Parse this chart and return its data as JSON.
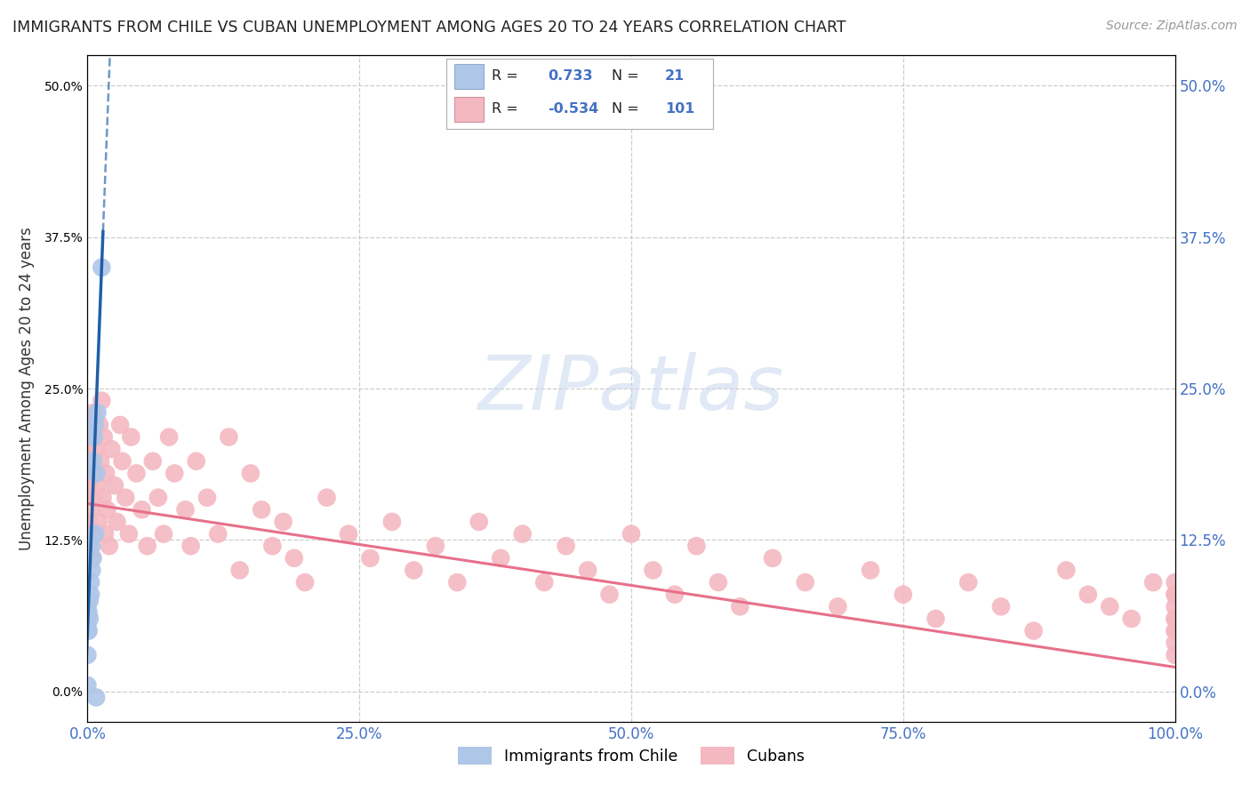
{
  "title": "IMMIGRANTS FROM CHILE VS CUBAN UNEMPLOYMENT AMONG AGES 20 TO 24 YEARS CORRELATION CHART",
  "source": "Source: ZipAtlas.com",
  "ylabel": "Unemployment Among Ages 20 to 24 years",
  "xlim": [
    0.0,
    1.0
  ],
  "ylim": [
    -0.025,
    0.525
  ],
  "xticks": [
    0.0,
    0.25,
    0.5,
    0.75,
    1.0
  ],
  "yticks": [
    0.0,
    0.125,
    0.25,
    0.375,
    0.5
  ],
  "chile_color": "#aec6e8",
  "cuban_color": "#f4b8c1",
  "chile_line_color": "#1f5fa6",
  "cuban_line_color": "#e8708a",
  "background_color": "#ffffff",
  "chile_points_x": [
    0.0,
    0.0,
    0.0,
    0.0,
    0.0,
    0.001,
    0.001,
    0.002,
    0.002,
    0.003,
    0.003,
    0.004,
    0.004,
    0.005,
    0.005,
    0.006,
    0.007,
    0.007,
    0.008,
    0.009,
    0.013
  ],
  "chile_points_y": [
    0.005,
    0.03,
    0.05,
    0.055,
    0.07,
    0.05,
    0.065,
    0.06,
    0.075,
    0.08,
    0.09,
    0.1,
    0.12,
    0.11,
    0.19,
    0.21,
    0.13,
    0.22,
    0.18,
    0.23,
    0.35
  ],
  "chile_outlier_x": [
    0.008
  ],
  "chile_outlier_y": [
    0.03
  ],
  "cuban_points_x": [
    0.0,
    0.0,
    0.0,
    0.0,
    0.0,
    0.001,
    0.001,
    0.002,
    0.002,
    0.003,
    0.003,
    0.004,
    0.005,
    0.005,
    0.006,
    0.007,
    0.008,
    0.009,
    0.01,
    0.011,
    0.012,
    0.013,
    0.014,
    0.015,
    0.016,
    0.017,
    0.018,
    0.02,
    0.022,
    0.025,
    0.027,
    0.03,
    0.032,
    0.035,
    0.038,
    0.04,
    0.045,
    0.05,
    0.055,
    0.06,
    0.065,
    0.07,
    0.075,
    0.08,
    0.09,
    0.095,
    0.1,
    0.11,
    0.12,
    0.13,
    0.14,
    0.15,
    0.16,
    0.17,
    0.18,
    0.19,
    0.2,
    0.22,
    0.24,
    0.26,
    0.28,
    0.3,
    0.32,
    0.34,
    0.36,
    0.38,
    0.4,
    0.42,
    0.44,
    0.46,
    0.48,
    0.5,
    0.52,
    0.54,
    0.56,
    0.58,
    0.6,
    0.63,
    0.66,
    0.69,
    0.72,
    0.75,
    0.78,
    0.81,
    0.84,
    0.87,
    0.9,
    0.92,
    0.94,
    0.96,
    0.98,
    1.0,
    1.0,
    1.0,
    1.0,
    1.0,
    1.0,
    1.0,
    1.0,
    1.0,
    1.0
  ],
  "cuban_points_y": [
    0.13,
    0.16,
    0.18,
    0.2,
    0.22,
    0.14,
    0.17,
    0.12,
    0.19,
    0.15,
    0.21,
    0.11,
    0.18,
    0.23,
    0.16,
    0.13,
    0.2,
    0.17,
    0.14,
    0.22,
    0.19,
    0.24,
    0.16,
    0.21,
    0.13,
    0.18,
    0.15,
    0.12,
    0.2,
    0.17,
    0.14,
    0.22,
    0.19,
    0.16,
    0.13,
    0.21,
    0.18,
    0.15,
    0.12,
    0.19,
    0.16,
    0.13,
    0.21,
    0.18,
    0.15,
    0.12,
    0.19,
    0.16,
    0.13,
    0.21,
    0.1,
    0.18,
    0.15,
    0.12,
    0.14,
    0.11,
    0.09,
    0.16,
    0.13,
    0.11,
    0.14,
    0.1,
    0.12,
    0.09,
    0.14,
    0.11,
    0.13,
    0.09,
    0.12,
    0.1,
    0.08,
    0.13,
    0.1,
    0.08,
    0.12,
    0.09,
    0.07,
    0.11,
    0.09,
    0.07,
    0.1,
    0.08,
    0.06,
    0.09,
    0.07,
    0.05,
    0.1,
    0.08,
    0.07,
    0.06,
    0.09,
    0.03,
    0.05,
    0.07,
    0.08,
    0.06,
    0.09,
    0.04,
    0.06,
    0.08,
    0.05
  ]
}
